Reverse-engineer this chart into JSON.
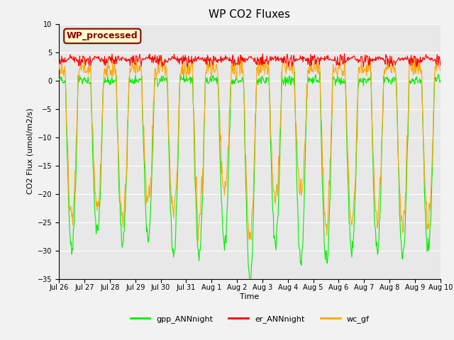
{
  "title": "WP CO2 Fluxes",
  "ylabel": "CO2 Flux (umol/m2/s)",
  "xlabel": "Time",
  "ylim": [
    -35,
    10
  ],
  "yticks": [
    -35,
    -30,
    -25,
    -20,
    -15,
    -10,
    -5,
    0,
    5,
    10
  ],
  "annotation_text": "WP_processed",
  "annotation_color": "#8B0000",
  "annotation_bg": "#FFFFCC",
  "annotation_border": "#8B0000",
  "gpp_color": "#00EE00",
  "er_color": "#FF0000",
  "wc_color": "#FFA500",
  "legend_labels": [
    "gpp_ANNnight",
    "er_ANNnight",
    "wc_gf"
  ],
  "n_days": 15,
  "points_per_day": 48,
  "xtick_labels": [
    "Jul 26",
    "Jul 27",
    "Jul 28",
    "Jul 29",
    "Jul 30",
    "Jul 31",
    "Aug 1",
    "Aug 2",
    "Aug 3",
    "Aug 4",
    "Aug 5",
    "Aug 6",
    "Aug 7",
    "Aug 8",
    "Aug 9",
    "Aug 10"
  ],
  "plot_bg": "#E8E8E8",
  "fig_bg": "#F2F2F2",
  "grid_color": "#FFFFFF",
  "linewidth": 0.8
}
